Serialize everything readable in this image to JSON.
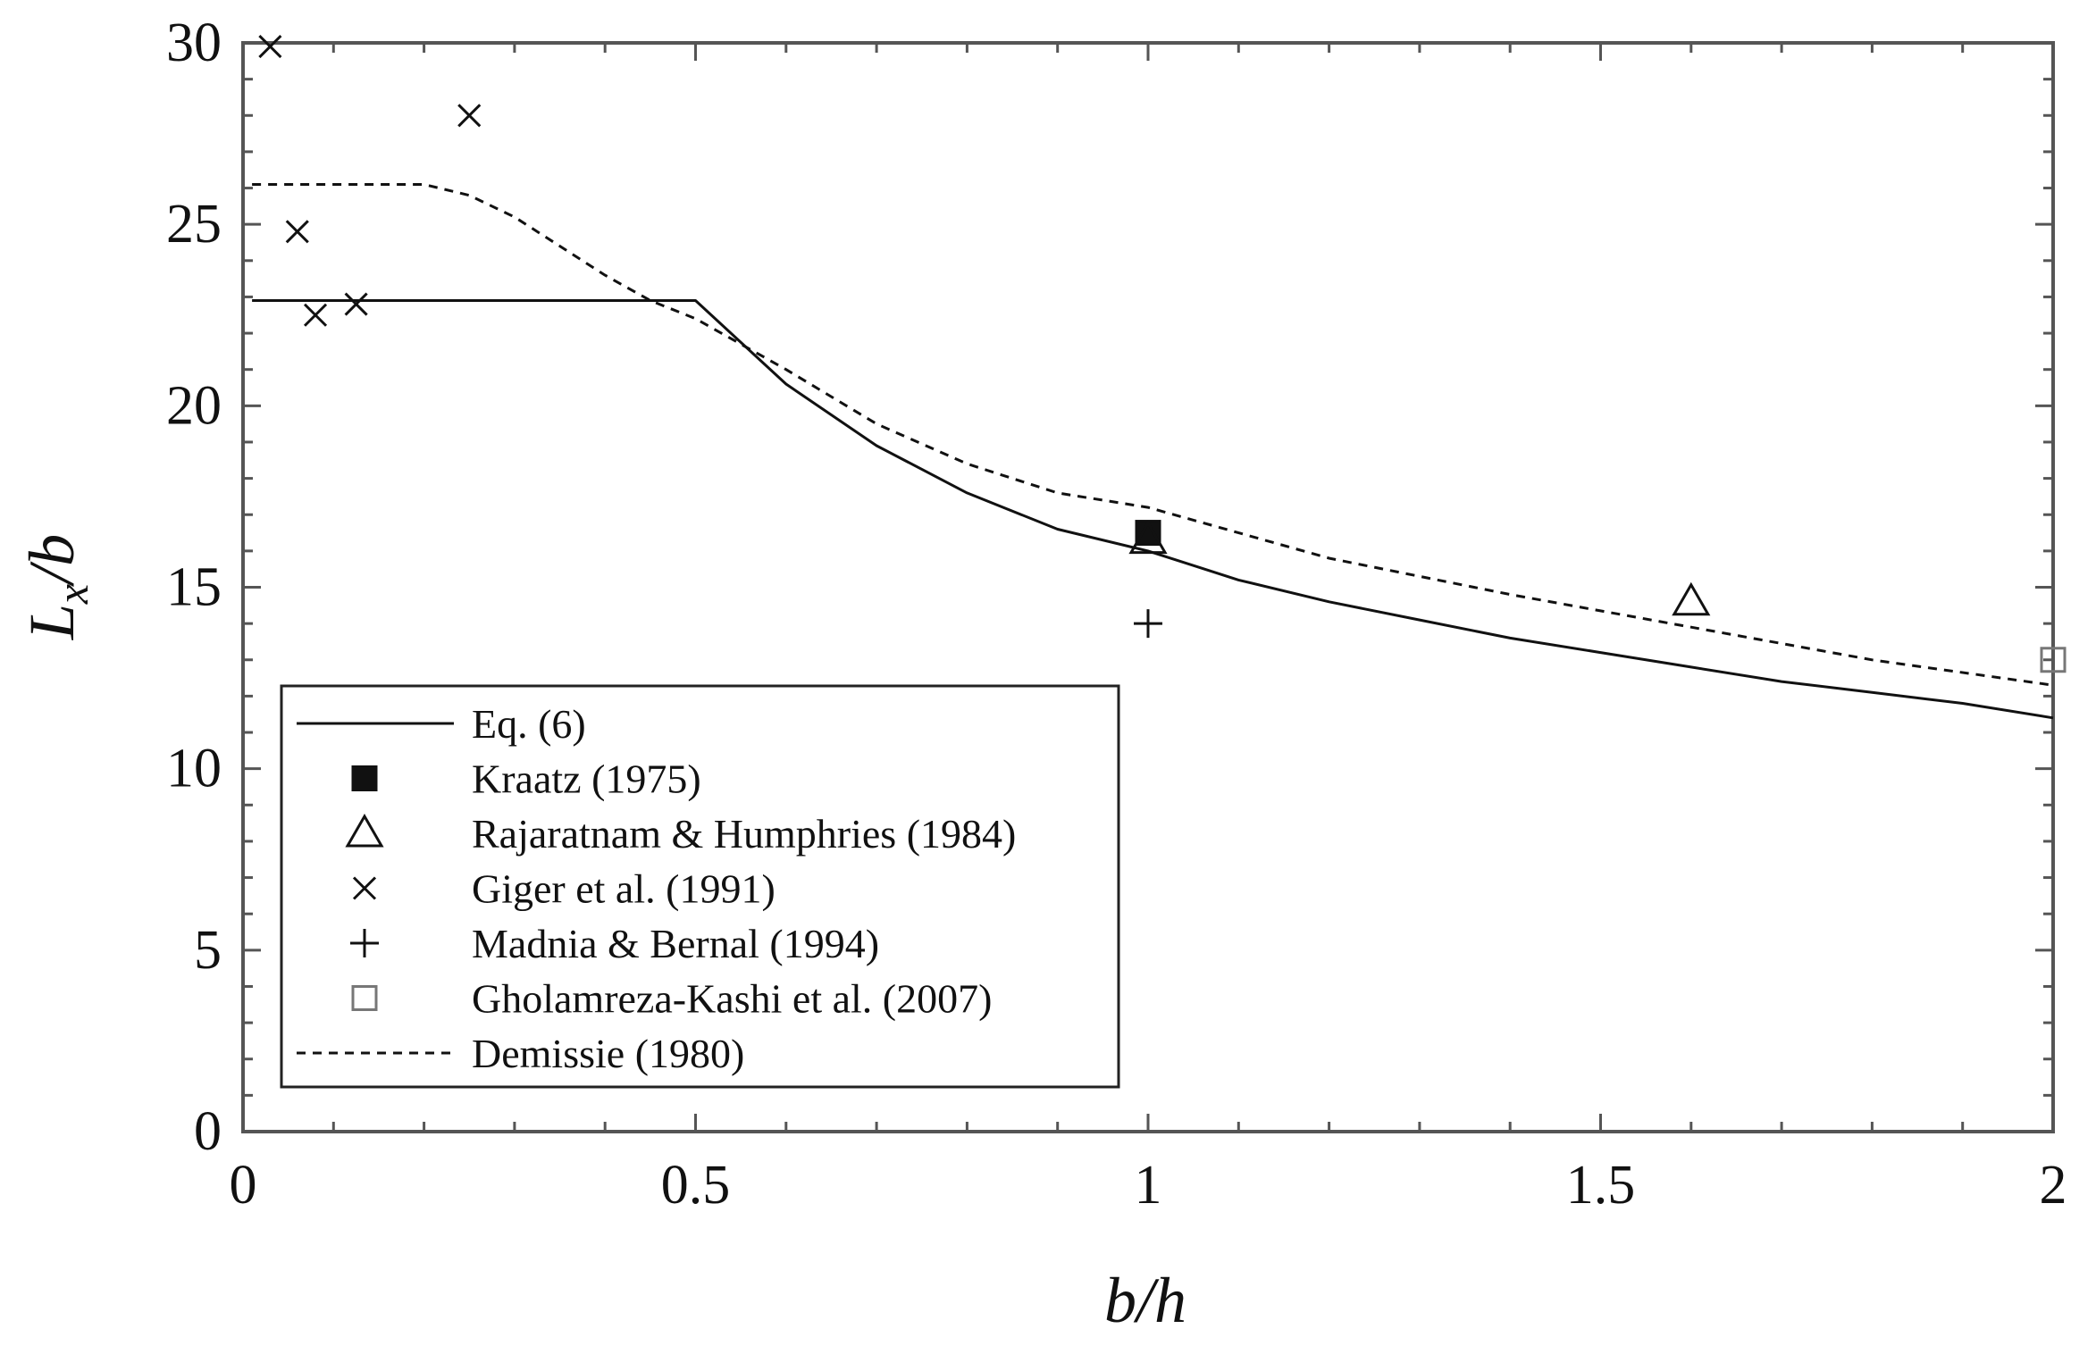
{
  "chart_data": {
    "type": "line",
    "xlabel": "b/h",
    "ylabel": "L_x/b",
    "ylabel_main": "L",
    "ylabel_sub": "x",
    "ylabel_tail": "/b",
    "xlim": [
      0,
      2
    ],
    "ylim": [
      0,
      30
    ],
    "x_ticks": [
      0,
      0.5,
      1,
      1.5,
      2
    ],
    "x_tick_labels": [
      "0",
      "0.5",
      "1",
      "1.5",
      "2"
    ],
    "y_ticks": [
      0,
      5,
      10,
      15,
      20,
      25,
      30
    ],
    "y_tick_labels": [
      "0",
      "5",
      "10",
      "15",
      "20",
      "25",
      "30"
    ],
    "grid": false,
    "legend_position": "bottom-left",
    "series": [
      {
        "name": "Eq. (6)",
        "kind": "line",
        "style": "solid",
        "x": [
          0.01,
          0.5,
          0.6,
          0.7,
          0.8,
          0.9,
          1.0,
          1.1,
          1.2,
          1.3,
          1.4,
          1.5,
          1.6,
          1.7,
          1.8,
          1.9,
          2.0
        ],
        "y": [
          22.9,
          22.9,
          20.6,
          18.9,
          17.6,
          16.6,
          16.0,
          15.2,
          14.6,
          14.1,
          13.6,
          13.2,
          12.8,
          12.4,
          12.1,
          11.8,
          11.4
        ]
      },
      {
        "name": "Kraatz (1975)",
        "kind": "marker",
        "marker": "filled-square",
        "x": [
          1.0
        ],
        "y": [
          16.5
        ]
      },
      {
        "name": "Rajaratnam & Humphries (1984)",
        "kind": "marker",
        "marker": "triangle",
        "x": [
          1.0,
          1.6
        ],
        "y": [
          16.3,
          14.6
        ]
      },
      {
        "name": "Giger et al. (1991)",
        "kind": "marker",
        "marker": "x",
        "x": [
          0.03,
          0.06,
          0.08,
          0.125,
          0.25
        ],
        "y": [
          29.9,
          24.8,
          22.5,
          22.8,
          28.0
        ]
      },
      {
        "name": "Madnia & Bernal (1994)",
        "kind": "marker",
        "marker": "plus",
        "x": [
          1.0
        ],
        "y": [
          14.0
        ]
      },
      {
        "name": "Gholamreza-Kashi et al. (2007)",
        "kind": "marker",
        "marker": "square",
        "x": [
          2.0
        ],
        "y": [
          13.0
        ]
      },
      {
        "name": "Demissie (1980)",
        "kind": "line",
        "style": "dashed",
        "x": [
          0.01,
          0.1,
          0.2,
          0.25,
          0.3,
          0.35,
          0.4,
          0.45,
          0.5,
          0.6,
          0.7,
          0.8,
          0.9,
          1.0,
          1.2,
          1.4,
          1.6,
          1.8,
          2.0
        ],
        "y": [
          26.1,
          26.1,
          26.1,
          25.8,
          25.2,
          24.4,
          23.6,
          22.9,
          22.4,
          21.0,
          19.5,
          18.4,
          17.6,
          17.2,
          15.8,
          14.8,
          13.9,
          13.0,
          12.3
        ]
      }
    ]
  },
  "colors": {
    "ink": "#111111",
    "gholamreza_marker": "#777777",
    "background": "#ffffff"
  }
}
